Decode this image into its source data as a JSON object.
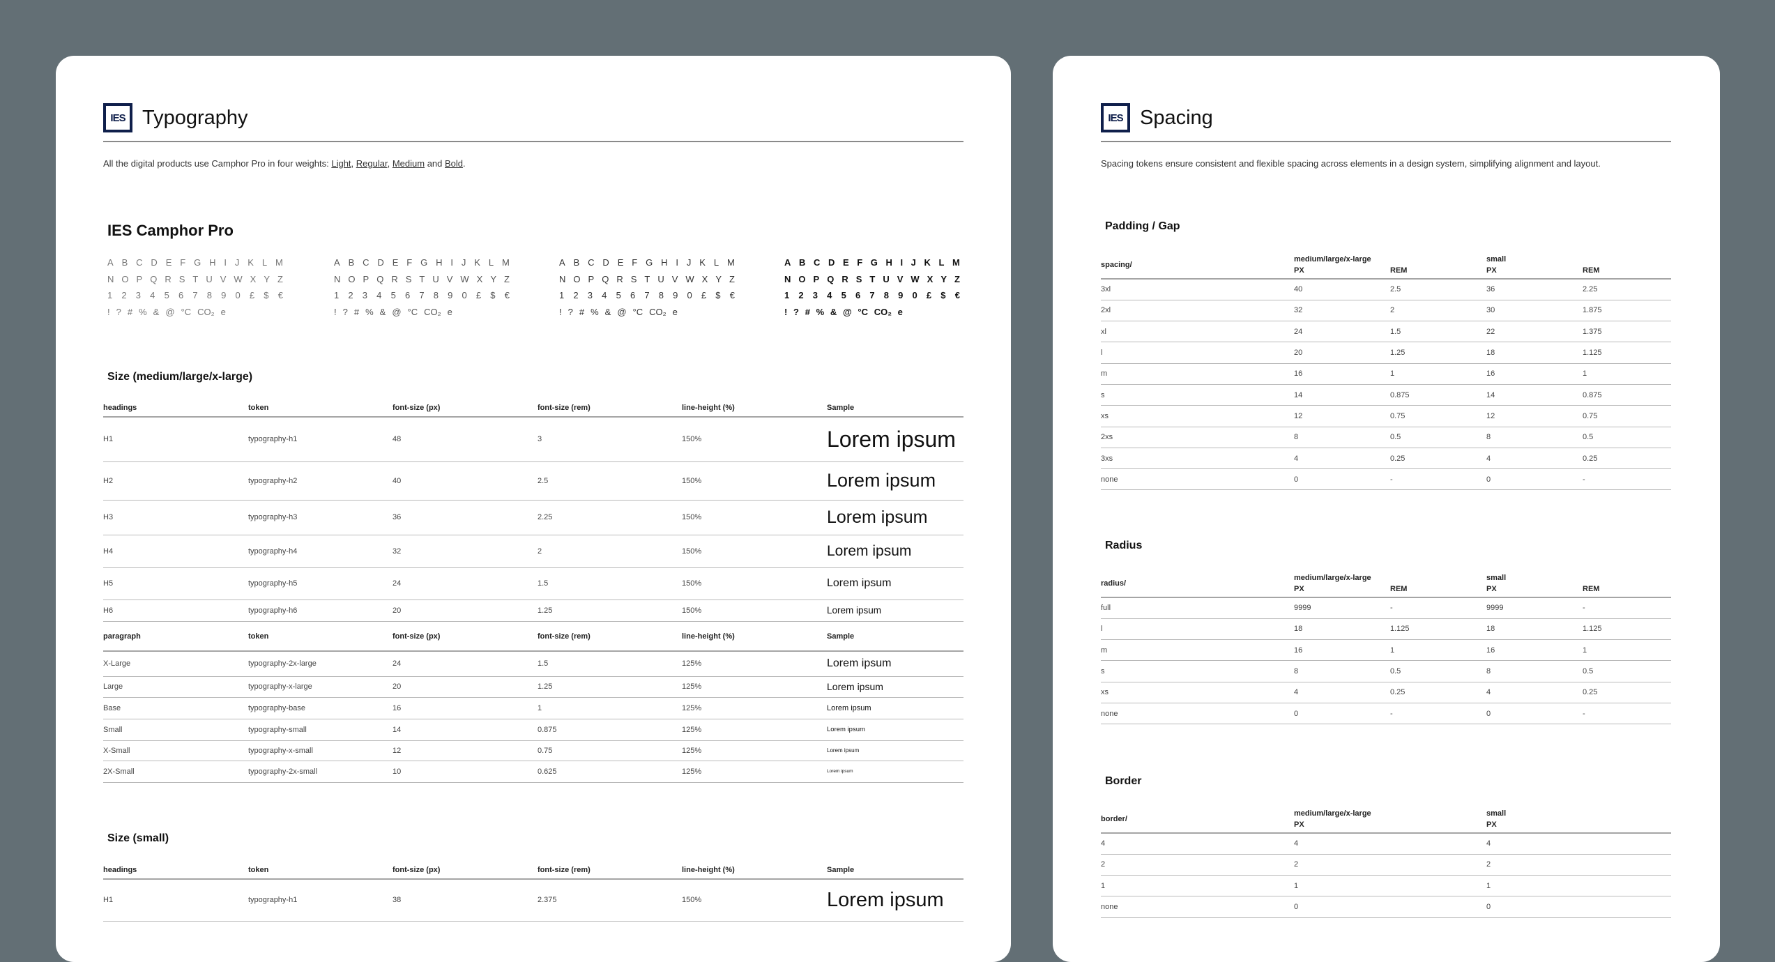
{
  "colors": {
    "background": "#636f75",
    "card": "#ffffff",
    "logo": "#0f1f4b"
  },
  "typography": {
    "logo": "IES",
    "title": "Typography",
    "description": {
      "prefix": "All the digital products use Camphor Pro in four weights: ",
      "weights": [
        "Light",
        "Regular",
        "Medium",
        "Bold"
      ],
      "sep1": ", ",
      "sep2": ", ",
      "sep3": " and ",
      "suffix": "."
    },
    "font_name": "IES Camphor Pro",
    "glyph_rows": [
      [
        "A",
        "B",
        "C",
        "D",
        "E",
        "F",
        "G",
        "H",
        "I",
        "J",
        "K",
        "L",
        "M"
      ],
      [
        "N",
        "O",
        "P",
        "Q",
        "R",
        "S",
        "T",
        "U",
        "V",
        "W",
        "X",
        "Y",
        "Z"
      ],
      [
        "1",
        "2",
        "3",
        "4",
        "5",
        "6",
        "7",
        "8",
        "9",
        "0",
        "£",
        "$",
        "€"
      ],
      [
        "!",
        "?",
        "#",
        "%",
        "&",
        "@",
        "°C",
        "CO₂",
        "e"
      ]
    ],
    "glyph_weights": [
      "Light",
      "Regular",
      "Medium",
      "Bold"
    ],
    "size_large": {
      "title": "Size (medium/large/x-large)",
      "headings_columns": [
        "headings",
        "token",
        "font-size (px)",
        "font-size (rem)",
        "line-height (%)",
        "Sample"
      ],
      "headings_rows": [
        [
          "H1",
          "typography-h1",
          "48",
          "3",
          "150%",
          "Lorem ipsum"
        ],
        [
          "H2",
          "typography-h2",
          "40",
          "2.5",
          "150%",
          "Lorem ipsum"
        ],
        [
          "H3",
          "typography-h3",
          "36",
          "2.25",
          "150%",
          "Lorem ipsum"
        ],
        [
          "H4",
          "typography-h4",
          "32",
          "2",
          "150%",
          "Lorem ipsum"
        ],
        [
          "H5",
          "typography-h5",
          "24",
          "1.5",
          "150%",
          "Lorem ipsum"
        ],
        [
          "H6",
          "typography-h6",
          "20",
          "1.25",
          "150%",
          "Lorem ipsum"
        ]
      ],
      "paragraph_columns": [
        "paragraph",
        "token",
        "font-size (px)",
        "font-size (rem)",
        "line-height (%)",
        "Sample"
      ],
      "paragraph_rows": [
        [
          "X-Large",
          "typography-2x-large",
          "24",
          "1.5",
          "125%",
          "Lorem ipsum"
        ],
        [
          "Large",
          "typography-x-large",
          "20",
          "1.25",
          "125%",
          "Lorem ipsum"
        ],
        [
          "Base",
          "typography-base",
          "16",
          "1",
          "125%",
          "Lorem ipsum"
        ],
        [
          "Small",
          "typography-small",
          "14",
          "0.875",
          "125%",
          "Lorem ipsum"
        ],
        [
          "X-Small",
          "typography-x-small",
          "12",
          "0.75",
          "125%",
          "Lorem ipsum"
        ],
        [
          "2X-Small",
          "typography-2x-small",
          "10",
          "0.625",
          "125%",
          "Lorem ipsum"
        ]
      ]
    },
    "size_small": {
      "title": "Size (small)",
      "headings_columns": [
        "headings",
        "token",
        "font-size (px)",
        "font-size (rem)",
        "line-height (%)",
        "Sample"
      ],
      "headings_rows": [
        [
          "H1",
          "typography-h1",
          "38",
          "2.375",
          "150%",
          "Lorem ipsum"
        ]
      ]
    }
  },
  "spacing": {
    "logo": "IES",
    "title": "Spacing",
    "description": "Spacing tokens ensure consistent and flexible spacing across elements in a design system, simplifying alignment and layout.",
    "padding": {
      "title": "Padding / Gap",
      "key_header": "spacing/",
      "group1": "medium/large/x-large",
      "group2": "small",
      "subheaders": [
        "PX",
        "REM",
        "PX",
        "REM"
      ],
      "rows": [
        [
          "3xl",
          "40",
          "2.5",
          "36",
          "2.25"
        ],
        [
          "2xl",
          "32",
          "2",
          "30",
          "1.875"
        ],
        [
          "xl",
          "24",
          "1.5",
          "22",
          "1.375"
        ],
        [
          "l",
          "20",
          "1.25",
          "18",
          "1.125"
        ],
        [
          "m",
          "16",
          "1",
          "16",
          "1"
        ],
        [
          "s",
          "14",
          "0.875",
          "14",
          "0.875"
        ],
        [
          "xs",
          "12",
          "0.75",
          "12",
          "0.75"
        ],
        [
          "2xs",
          "8",
          "0.5",
          "8",
          "0.5"
        ],
        [
          "3xs",
          "4",
          "0.25",
          "4",
          "0.25"
        ],
        [
          "none",
          "0",
          "-",
          "0",
          "-"
        ]
      ]
    },
    "radius": {
      "title": "Radius",
      "key_header": "radius/",
      "group1": "medium/large/x-large",
      "group2": "small",
      "subheaders": [
        "PX",
        "REM",
        "PX",
        "REM"
      ],
      "rows": [
        [
          "full",
          "9999",
          "-",
          "9999",
          "-"
        ],
        [
          "l",
          "18",
          "1.125",
          "18",
          "1.125"
        ],
        [
          "m",
          "16",
          "1",
          "16",
          "1"
        ],
        [
          "s",
          "8",
          "0.5",
          "8",
          "0.5"
        ],
        [
          "xs",
          "4",
          "0.25",
          "4",
          "0.25"
        ],
        [
          "none",
          "0",
          "-",
          "0",
          "-"
        ]
      ]
    },
    "border": {
      "title": "Border",
      "key_header": "border/",
      "group1": "medium/large/x-large",
      "group2": "small",
      "subheaders": [
        "PX",
        "PX"
      ],
      "rows": [
        [
          "4",
          "4",
          "4"
        ],
        [
          "2",
          "2",
          "2"
        ],
        [
          "1",
          "1",
          "1"
        ],
        [
          "none",
          "0",
          "0"
        ]
      ]
    }
  }
}
